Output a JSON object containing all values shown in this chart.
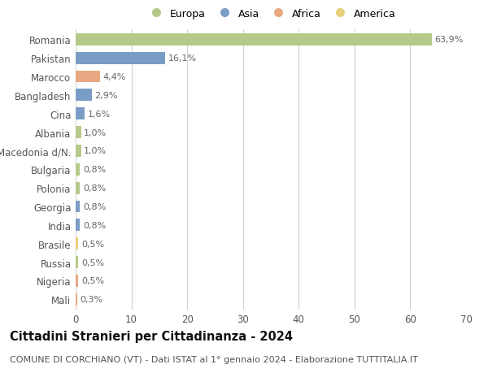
{
  "countries": [
    "Romania",
    "Pakistan",
    "Marocco",
    "Bangladesh",
    "Cina",
    "Albania",
    "Macedonia d/N.",
    "Bulgaria",
    "Polonia",
    "Georgia",
    "India",
    "Brasile",
    "Russia",
    "Nigeria",
    "Mali"
  ],
  "values": [
    63.9,
    16.1,
    4.4,
    2.9,
    1.6,
    1.0,
    1.0,
    0.8,
    0.8,
    0.8,
    0.8,
    0.5,
    0.5,
    0.5,
    0.3
  ],
  "labels": [
    "63,9%",
    "16,1%",
    "4,4%",
    "2,9%",
    "1,6%",
    "1,0%",
    "1,0%",
    "0,8%",
    "0,8%",
    "0,8%",
    "0,8%",
    "0,5%",
    "0,5%",
    "0,5%",
    "0,3%"
  ],
  "continents": [
    "Europa",
    "Asia",
    "Africa",
    "Asia",
    "Asia",
    "Europa",
    "Europa",
    "Europa",
    "Europa",
    "Asia",
    "Asia",
    "America",
    "Europa",
    "Africa",
    "Africa"
  ],
  "colors": {
    "Europa": "#b5c98a",
    "Asia": "#7a9dc5",
    "Africa": "#e8a882",
    "America": "#e8d07a"
  },
  "legend_order": [
    "Europa",
    "Asia",
    "Africa",
    "America"
  ],
  "title": "Cittadini Stranieri per Cittadinanza - 2024",
  "subtitle": "COMUNE DI CORCHIANO (VT) - Dati ISTAT al 1° gennaio 2024 - Elaborazione TUTTITALIA.IT",
  "xlim": [
    0,
    70
  ],
  "xticks": [
    0,
    10,
    20,
    30,
    40,
    50,
    60,
    70
  ],
  "background_color": "#ffffff",
  "grid_color": "#d0d0d0",
  "bar_height": 0.65,
  "title_fontsize": 10.5,
  "subtitle_fontsize": 8,
  "label_fontsize": 8,
  "tick_fontsize": 8.5,
  "legend_fontsize": 9
}
